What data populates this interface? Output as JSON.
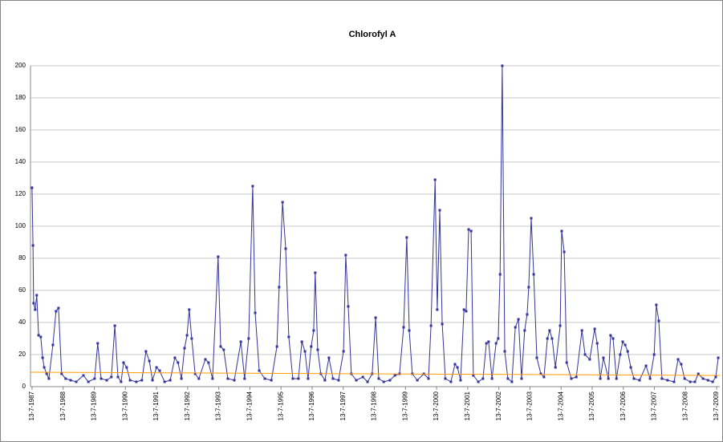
{
  "chart_data": {
    "type": "line",
    "title": "Chlorofyl A",
    "xlim": [
      1987.48,
      2009.63
    ],
    "xticks": [
      {
        "value": 1987.53,
        "label": "13-7-1987"
      },
      {
        "value": 1988.53,
        "label": "13-7-1988"
      },
      {
        "value": 1989.53,
        "label": "13-7-1989"
      },
      {
        "value": 1990.53,
        "label": "13-7-1990"
      },
      {
        "value": 1991.53,
        "label": "13-7-1991"
      },
      {
        "value": 1992.53,
        "label": "13-7-1992"
      },
      {
        "value": 1993.53,
        "label": "13-7-1993"
      },
      {
        "value": 1994.53,
        "label": "13-7-1994"
      },
      {
        "value": 1995.53,
        "label": "13-7-1995"
      },
      {
        "value": 1996.53,
        "label": "13-7-1996"
      },
      {
        "value": 1997.53,
        "label": "13-7-1997"
      },
      {
        "value": 1998.53,
        "label": "13-7-1998"
      },
      {
        "value": 1999.53,
        "label": "13-7-1999"
      },
      {
        "value": 2000.53,
        "label": "13-7-2000"
      },
      {
        "value": 2001.53,
        "label": "13-7-2001"
      },
      {
        "value": 2002.53,
        "label": "13-7-2002"
      },
      {
        "value": 2003.53,
        "label": "13-7-2003"
      },
      {
        "value": 2004.53,
        "label": "13-7-2004"
      },
      {
        "value": 2005.53,
        "label": "13-7-2005"
      },
      {
        "value": 2006.53,
        "label": "13-7-2006"
      },
      {
        "value": 2007.53,
        "label": "13-7-2007"
      },
      {
        "value": 2008.53,
        "label": "13-7-2008"
      },
      {
        "value": 2009.53,
        "label": "13-7-2009"
      }
    ],
    "ylim": [
      0,
      200
    ],
    "yticks": [
      0,
      20,
      40,
      60,
      80,
      100,
      120,
      140,
      160,
      180,
      200
    ],
    "grid": true,
    "series": [
      {
        "color": "#333399",
        "markers": true,
        "x": [
          1987.53,
          1987.56,
          1987.58,
          1987.63,
          1987.68,
          1987.74,
          1987.81,
          1987.87,
          1987.92,
          1988.0,
          1988.07,
          1988.2,
          1988.3,
          1988.38,
          1988.48,
          1988.61,
          1988.77,
          1988.95,
          1989.18,
          1989.34,
          1989.54,
          1989.64,
          1989.75,
          1989.93,
          1990.08,
          1990.19,
          1990.29,
          1990.39,
          1990.47,
          1990.57,
          1990.68,
          1990.88,
          1991.06,
          1991.19,
          1991.3,
          1991.4,
          1991.53,
          1991.63,
          1991.79,
          1991.97,
          1992.12,
          1992.22,
          1992.33,
          1992.43,
          1992.51,
          1992.58,
          1992.66,
          1992.77,
          1992.89,
          1993.1,
          1993.2,
          1993.33,
          1993.51,
          1993.59,
          1993.69,
          1993.82,
          1994.03,
          1994.24,
          1994.36,
          1994.49,
          1994.62,
          1994.7,
          1994.83,
          1995.01,
          1995.22,
          1995.4,
          1995.47,
          1995.58,
          1995.68,
          1995.78,
          1995.91,
          1996.09,
          1996.2,
          1996.3,
          1996.4,
          1996.5,
          1996.58,
          1996.63,
          1996.71,
          1996.81,
          1996.94,
          1997.07,
          1997.2,
          1997.38,
          1997.54,
          1997.61,
          1997.69,
          1997.79,
          1997.95,
          1998.16,
          1998.31,
          1998.46,
          1998.57,
          1998.67,
          1998.83,
          1999.03,
          1999.19,
          1999.34,
          1999.47,
          1999.57,
          1999.65,
          1999.75,
          1999.91,
          2000.12,
          2000.27,
          2000.35,
          2000.48,
          2000.55,
          2000.63,
          2000.71,
          2000.81,
          2000.99,
          2001.12,
          2001.2,
          2001.3,
          2001.41,
          2001.48,
          2001.56,
          2001.64,
          2001.71,
          2001.87,
          2002.02,
          2002.13,
          2002.2,
          2002.31,
          2002.44,
          2002.51,
          2002.57,
          2002.64,
          2002.72,
          2002.82,
          2002.95,
          2003.06,
          2003.16,
          2003.26,
          2003.36,
          2003.44,
          2003.49,
          2003.57,
          2003.65,
          2003.75,
          2003.88,
          2003.98,
          2004.09,
          2004.16,
          2004.24,
          2004.35,
          2004.5,
          2004.55,
          2004.63,
          2004.71,
          2004.86,
          2005.02,
          2005.2,
          2005.3,
          2005.45,
          2005.61,
          2005.69,
          2005.79,
          2005.89,
          2006.05,
          2006.12,
          2006.2,
          2006.31,
          2006.43,
          2006.51,
          2006.59,
          2006.67,
          2006.77,
          2006.87,
          2007.05,
          2007.26,
          2007.39,
          2007.52,
          2007.59,
          2007.67,
          2007.77,
          2007.95,
          2008.16,
          2008.29,
          2008.39,
          2008.5,
          2008.68,
          2008.83,
          2008.94,
          2009.09,
          2009.25,
          2009.4,
          2009.5,
          2009.58
        ],
        "values": [
          124,
          88,
          52,
          48,
          57,
          32,
          31,
          18,
          12,
          8,
          5,
          26,
          47,
          49,
          8,
          5,
          4,
          3,
          7,
          3,
          5,
          27,
          5,
          4,
          6,
          38,
          6,
          3,
          15,
          12,
          4,
          3,
          4,
          22,
          16,
          4,
          12,
          10,
          3,
          4,
          18,
          15,
          5,
          24,
          32,
          48,
          30,
          8,
          5,
          17,
          15,
          5,
          81,
          25,
          23,
          5,
          4,
          28,
          5,
          30,
          125,
          46,
          10,
          5,
          4,
          25,
          62,
          115,
          86,
          31,
          5,
          5,
          28,
          22,
          5,
          25,
          35,
          71,
          23,
          8,
          4,
          18,
          5,
          4,
          22,
          82,
          50,
          8,
          4,
          6,
          3,
          8,
          43,
          5,
          3,
          4,
          7,
          8,
          37,
          93,
          35,
          8,
          4,
          8,
          5,
          38,
          129,
          48,
          110,
          39,
          5,
          3,
          14,
          12,
          4,
          48,
          47,
          98,
          97,
          7,
          3,
          5,
          27,
          28,
          5,
          27,
          30,
          70,
          200,
          22,
          5,
          3,
          37,
          42,
          5,
          35,
          45,
          62,
          105,
          70,
          18,
          8,
          6,
          30,
          35,
          30,
          12,
          38,
          97,
          84,
          15,
          5,
          6,
          35,
          20,
          17,
          36,
          27,
          5,
          18,
          5,
          32,
          30,
          5,
          20,
          28,
          26,
          22,
          12,
          5,
          4,
          13,
          5,
          20,
          51,
          41,
          5,
          4,
          3,
          17,
          14,
          5,
          3,
          3,
          8,
          5,
          4,
          3,
          6,
          18
        ]
      },
      {
        "color": "#ff9900",
        "markers": false,
        "x": [
          1987.48,
          2009.63
        ],
        "values": [
          9,
          7
        ]
      }
    ]
  }
}
